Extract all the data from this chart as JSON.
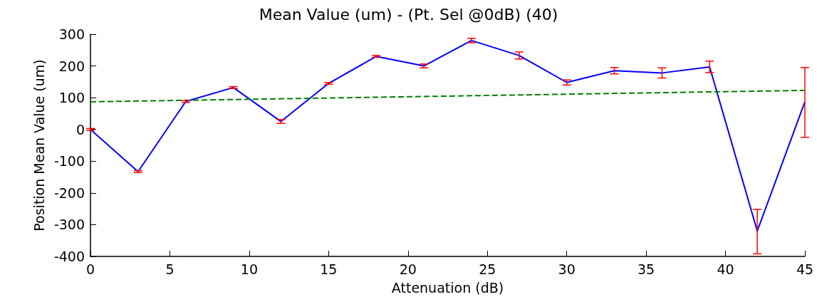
{
  "chart_data": {
    "type": "line",
    "title": "Mean Value (um) - (Pt. Sel @0dB) (40)",
    "xlabel": "Attenuation (dB)",
    "ylabel": "Position Mean Value (um)",
    "xlim": [
      0,
      45
    ],
    "xticks": [
      0,
      5,
      10,
      15,
      20,
      25,
      30,
      35,
      40,
      45
    ],
    "ylim": [
      -400,
      300
    ],
    "yticks": [
      -400,
      -300,
      -200,
      -100,
      0,
      100,
      200,
      300
    ],
    "grid": false,
    "marker": "none",
    "series": [
      {
        "color": "#0000ff",
        "line_style": "solid",
        "x": [
          0,
          3,
          6,
          9,
          12,
          15,
          18,
          21,
          24,
          27,
          30,
          33,
          36,
          39,
          42,
          45
        ],
        "values": [
          0,
          -133,
          88,
          132,
          25,
          145,
          230,
          200,
          280,
          233,
          148,
          185,
          178,
          197,
          -320,
          87
        ],
        "errors": [
          3,
          3,
          3,
          3,
          6,
          3,
          3,
          6,
          7,
          11,
          8,
          10,
          16,
          18,
          [
            -392,
            -252
          ],
          [
            -25,
            195
          ]
        ]
      },
      {
        "color": "#008000",
        "line_style": "dashed",
        "x": [
          0,
          45
        ],
        "values": [
          87,
          123
        ]
      }
    ]
  }
}
